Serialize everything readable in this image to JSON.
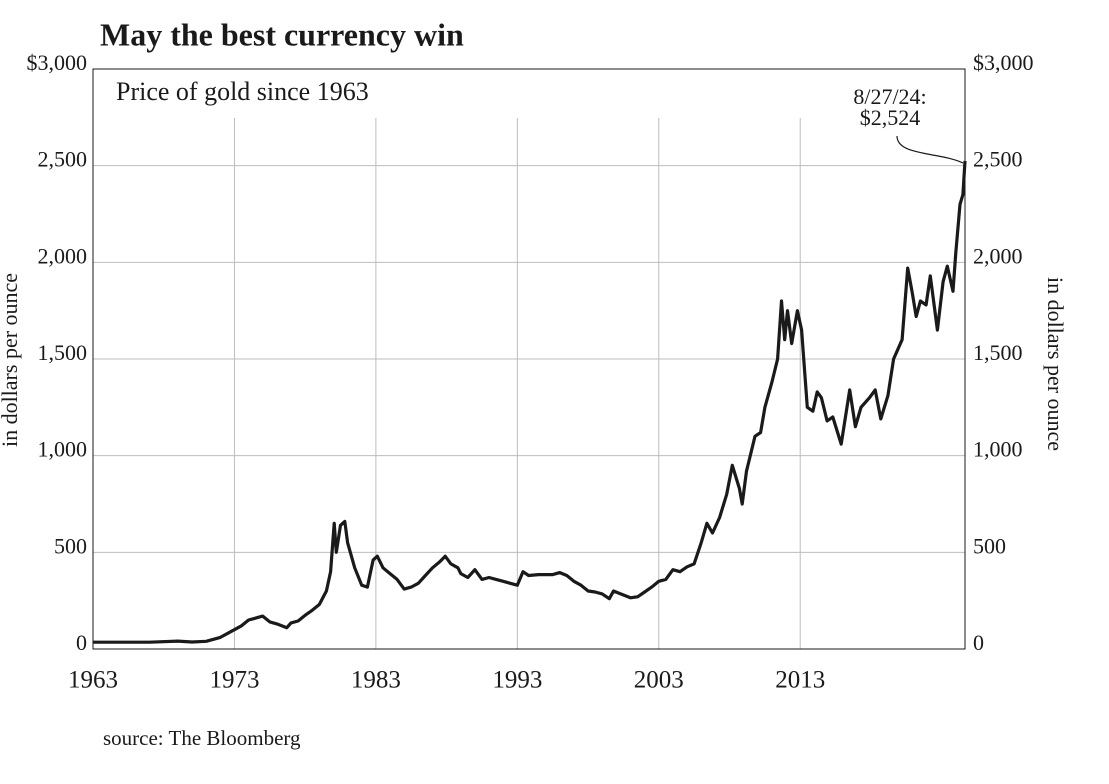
{
  "chart_data": {
    "type": "line",
    "title": "May the best currency win",
    "subtitle": "Price of gold since 1963",
    "ylabel": "in dollars per ounce",
    "y2label": "in dollars per ounce",
    "source": "source: The Bloomberg",
    "annotation": [
      "8/27/24:",
      "$2,524"
    ],
    "x": [
      1963,
      1965,
      1967,
      1969,
      1970,
      1971,
      1972,
      1973,
      1973.5,
      1974,
      1974.5,
      1975,
      1975.5,
      1976,
      1976.7,
      1977,
      1977.5,
      1978,
      1978.5,
      1979,
      1979.5,
      1979.8,
      1980.05,
      1980.2,
      1980.5,
      1980.8,
      1981,
      1981.5,
      1982,
      1982.4,
      1982.8,
      1983.1,
      1983.5,
      1984,
      1984.5,
      1985,
      1985.5,
      1986,
      1986.5,
      1987,
      1987.5,
      1987.9,
      1988.3,
      1988.8,
      1989,
      1989.5,
      1990,
      1990.5,
      1991,
      1991.5,
      1992,
      1992.5,
      1993,
      1993.4,
      1993.8,
      1994.5,
      1995,
      1995.5,
      1996,
      1996.5,
      1997,
      1997.5,
      1998,
      1998.5,
      1999,
      1999.5,
      1999.8,
      2000.3,
      2001,
      2001.5,
      2002,
      2002.5,
      2003,
      2003.5,
      2004,
      2004.5,
      2005,
      2005.5,
      2006,
      2006.4,
      2006.8,
      2007.3,
      2007.8,
      2008.2,
      2008.7,
      2008.9,
      2009.2,
      2009.8,
      2010.2,
      2010.5,
      2011,
      2011.4,
      2011.68,
      2011.9,
      2012.1,
      2012.4,
      2012.8,
      2013.1,
      2013.5,
      2013.9,
      2014.2,
      2014.5,
      2014.9,
      2015.3,
      2015.9,
      2016.5,
      2016.9,
      2017.3,
      2017.9,
      2018.3,
      2018.7,
      2019.2,
      2019.6,
      2020.2,
      2020.6,
      2020.9,
      2021.2,
      2021.5,
      2021.9,
      2022.2,
      2022.7,
      2023.1,
      2023.4,
      2023.8,
      2024,
      2024.3,
      2024.5,
      2024.65
    ],
    "series": [
      {
        "name": "Gold price",
        "color": "#1a1a1a",
        "values": [
          35,
          35,
          35,
          41,
          36,
          40,
          60,
          100,
          120,
          150,
          160,
          170,
          140,
          130,
          110,
          135,
          145,
          175,
          200,
          230,
          300,
          400,
          650,
          500,
          640,
          660,
          550,
          420,
          330,
          320,
          460,
          480,
          420,
          390,
          360,
          310,
          320,
          340,
          380,
          420,
          450,
          480,
          440,
          420,
          390,
          370,
          410,
          360,
          370,
          360,
          350,
          340,
          330,
          400,
          380,
          385,
          385,
          385,
          395,
          380,
          350,
          330,
          300,
          295,
          285,
          260,
          300,
          285,
          265,
          270,
          295,
          320,
          350,
          360,
          410,
          400,
          425,
          440,
          550,
          650,
          600,
          680,
          800,
          950,
          830,
          750,
          920,
          1100,
          1120,
          1250,
          1380,
          1500,
          1800,
          1600,
          1750,
          1580,
          1750,
          1650,
          1250,
          1230,
          1330,
          1300,
          1180,
          1200,
          1060,
          1340,
          1150,
          1250,
          1300,
          1340,
          1190,
          1310,
          1500,
          1600,
          1970,
          1850,
          1720,
          1800,
          1780,
          1930,
          1650,
          1900,
          1980,
          1850,
          2050,
          2300,
          2350,
          2524
        ]
      }
    ],
    "xlim": [
      1963,
      2024.65
    ],
    "xticks": [
      1963,
      1973,
      1983,
      1993,
      2003,
      2013
    ],
    "ylim": [
      0,
      3000
    ],
    "yticks": [
      0,
      500,
      {
        "value": 1000,
        "label": "1,000"
      },
      {
        "value": 1500,
        "label": "1,500"
      },
      {
        "value": 2000,
        "label": "2,000"
      },
      {
        "value": 2500,
        "label": "2,500"
      },
      {
        "value": 3000,
        "label": "$3,000"
      }
    ],
    "y2lim": [
      0,
      3000
    ],
    "y2ticks": [
      0,
      500,
      {
        "value": 1000,
        "label": "1,000"
      },
      {
        "value": 1500,
        "label": "1,500"
      },
      {
        "value": 2000,
        "label": "2,000"
      },
      {
        "value": 2500,
        "label": "2,500"
      },
      {
        "value": 3000,
        "label": "$3,000"
      }
    ],
    "grid": true
  }
}
